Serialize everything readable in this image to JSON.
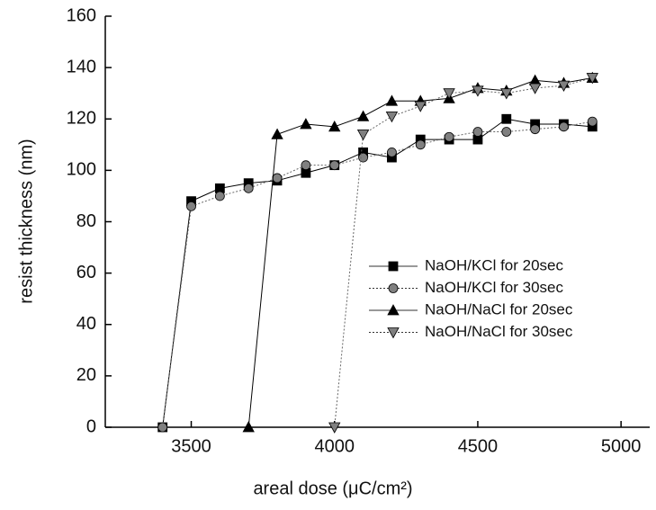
{
  "chart_data": {
    "type": "line",
    "xlabel": "areal dose (μC/cm²)",
    "ylabel": "resist thickness (nm)",
    "xlim": [
      3200,
      5100
    ],
    "ylim": [
      0,
      160
    ],
    "xticks": [
      3500,
      4000,
      4500,
      5000
    ],
    "yticks": [
      0,
      20,
      40,
      60,
      80,
      100,
      120,
      140,
      160
    ],
    "grid": false,
    "legend_position": "center right",
    "series": [
      {
        "name": "NaOH/KCl for 20sec",
        "color": "#000000",
        "marker": "square",
        "linestyle": "solid",
        "x": [
          3400,
          3500,
          3600,
          3700,
          3800,
          3900,
          4000,
          4100,
          4200,
          4300,
          4400,
          4500,
          4600,
          4700,
          4800,
          4900
        ],
        "values": [
          0,
          88,
          93,
          95,
          96,
          99,
          102,
          107,
          105,
          112,
          112,
          112,
          120,
          118,
          118,
          117
        ]
      },
      {
        "name": "NaOH/KCl for 30sec",
        "color": "#808080",
        "marker": "circle",
        "linestyle": "dotted",
        "x": [
          3400,
          3500,
          3600,
          3700,
          3800,
          3900,
          4000,
          4100,
          4200,
          4300,
          4400,
          4500,
          4600,
          4700,
          4800,
          4900
        ],
        "values": [
          0,
          86,
          90,
          93,
          97,
          102,
          102,
          105,
          107,
          110,
          113,
          115,
          115,
          116,
          117,
          119
        ]
      },
      {
        "name": "NaOH/NaCl for 20sec",
        "color": "#000000",
        "marker": "triangle-up",
        "linestyle": "solid",
        "x": [
          3700,
          3800,
          3900,
          4000,
          4100,
          4200,
          4300,
          4400,
          4500,
          4600,
          4700,
          4800,
          4900
        ],
        "values": [
          0,
          114,
          118,
          117,
          121,
          127,
          127,
          128,
          132,
          131,
          135,
          134,
          136
        ]
      },
      {
        "name": "NaOH/NaCl for 30sec",
        "color": "#808080",
        "marker": "triangle-down",
        "linestyle": "dotted",
        "x": [
          4000,
          4100,
          4200,
          4300,
          4400,
          4500,
          4600,
          4700,
          4800,
          4900
        ],
        "values": [
          0,
          114,
          121,
          125,
          130,
          131,
          130,
          132,
          133,
          136
        ]
      }
    ]
  }
}
